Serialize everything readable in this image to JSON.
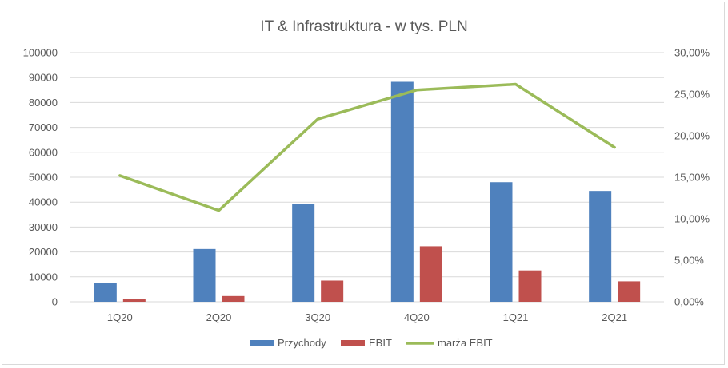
{
  "chart_data": {
    "type": "bar",
    "title": "IT & Infrastruktura - w tys. PLN",
    "categories": [
      "1Q20",
      "2Q20",
      "3Q20",
      "4Q20",
      "1Q21",
      "2Q21"
    ],
    "series": [
      {
        "name": "Przychody",
        "type": "bar",
        "axis": "left",
        "color": "#4f81bd",
        "values": [
          7500,
          21200,
          39300,
          88300,
          48000,
          44500
        ]
      },
      {
        "name": "EBIT",
        "type": "bar",
        "axis": "left",
        "color": "#c0504d",
        "values": [
          1100,
          2300,
          8500,
          22300,
          12600,
          8200
        ]
      },
      {
        "name": "marża EBIT",
        "type": "line",
        "axis": "right",
        "color": "#9bbb59",
        "values": [
          0.152,
          0.11,
          0.22,
          0.255,
          0.262,
          0.186
        ]
      }
    ],
    "y_left": {
      "ylim": [
        0,
        100000
      ],
      "ticks": [
        0,
        10000,
        20000,
        30000,
        40000,
        50000,
        60000,
        70000,
        80000,
        90000,
        100000
      ],
      "tick_labels": [
        "0",
        "10000",
        "20000",
        "30000",
        "40000",
        "50000",
        "60000",
        "70000",
        "80000",
        "90000",
        "100000"
      ]
    },
    "y_right": {
      "ylim": [
        0,
        0.3
      ],
      "ticks": [
        0,
        0.05,
        0.1,
        0.15,
        0.2,
        0.25,
        0.3
      ],
      "tick_labels": [
        "0,00%",
        "5,00%",
        "10,00%",
        "15,00%",
        "20,00%",
        "25,00%",
        "30,00%"
      ]
    },
    "grid": true,
    "legend_position": "bottom",
    "xlabel": "",
    "ylabel": ""
  }
}
